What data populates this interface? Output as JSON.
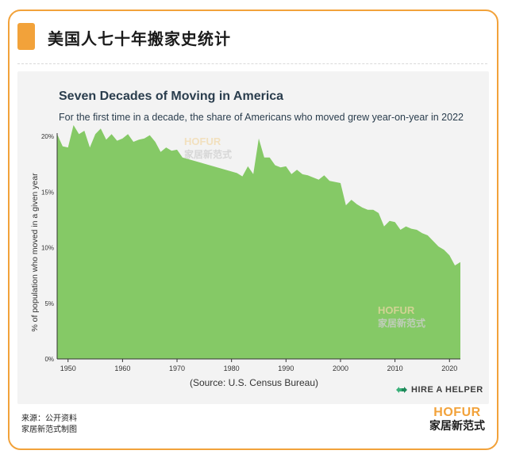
{
  "header": {
    "title": "美国人七十年搬家史统计"
  },
  "footer": {
    "source_line1": "来源：公开资料",
    "source_line2": "家居新范式制图"
  },
  "logo": {
    "en": "HOFUR",
    "cn": "家居新范式"
  },
  "watermark": {
    "en": "HOFUR",
    "cn": "家居新范式"
  },
  "brand": {
    "name": "HIRE A HELPER"
  },
  "colors": {
    "accent": "#f2a23a",
    "area_fill": "#85c966",
    "axis": "#333333",
    "title": "#2a3d4d"
  },
  "chart_data": {
    "type": "area",
    "title": "Seven Decades of Moving in America",
    "subtitle": "For the first time in a decade, the share of Americans who moved grew year-on-year in 2022",
    "xlabel": "",
    "ylabel": "% of population who moved in a given year",
    "source_note": "(Source: U.S. Census Bureau)",
    "xlim": [
      1948,
      2022
    ],
    "ylim": [
      0,
      20
    ],
    "x_ticks": [
      1950,
      1960,
      1970,
      1980,
      1990,
      2000,
      2010,
      2020
    ],
    "y_ticks": [
      0,
      5,
      10,
      15,
      20
    ],
    "y_tick_labels": [
      "0%",
      "5%",
      "10%",
      "15%",
      "20%"
    ],
    "grid": false,
    "series": [
      {
        "x": [
          1948,
          1949,
          1950,
          1951,
          1952,
          1953,
          1954,
          1955,
          1956,
          1957,
          1958,
          1959,
          1960,
          1961,
          1962,
          1963,
          1964,
          1965,
          1966,
          1967,
          1968,
          1969,
          1970,
          1971,
          1981,
          1982,
          1983,
          1984,
          1985,
          1986,
          1987,
          1988,
          1989,
          1990,
          1991,
          1992,
          1993,
          1994,
          1995,
          1996,
          1997,
          1998,
          1999,
          2000,
          2001,
          2002,
          2003,
          2004,
          2005,
          2006,
          2007,
          2008,
          2009,
          2010,
          2011,
          2012,
          2013,
          2014,
          2015,
          2016,
          2017,
          2018,
          2019,
          2020,
          2021,
          2022
        ],
        "values": [
          20.2,
          19.1,
          19.0,
          21.0,
          20.2,
          20.5,
          19.0,
          20.2,
          20.7,
          19.7,
          20.2,
          19.6,
          19.8,
          20.2,
          19.5,
          19.7,
          19.8,
          20.1,
          19.5,
          18.6,
          19.0,
          18.7,
          18.8,
          18.1,
          16.7,
          16.4,
          17.3,
          16.6,
          19.8,
          18.1,
          18.1,
          17.4,
          17.2,
          17.3,
          16.6,
          17.0,
          16.6,
          16.5,
          16.3,
          16.1,
          16.5,
          16.0,
          15.9,
          15.8,
          13.8,
          14.3,
          13.9,
          13.6,
          13.4,
          13.4,
          13.1,
          11.9,
          12.4,
          12.3,
          11.6,
          11.9,
          11.7,
          11.6,
          11.3,
          11.1,
          10.6,
          10.1,
          9.8,
          9.3,
          8.4,
          8.7
        ]
      }
    ]
  }
}
